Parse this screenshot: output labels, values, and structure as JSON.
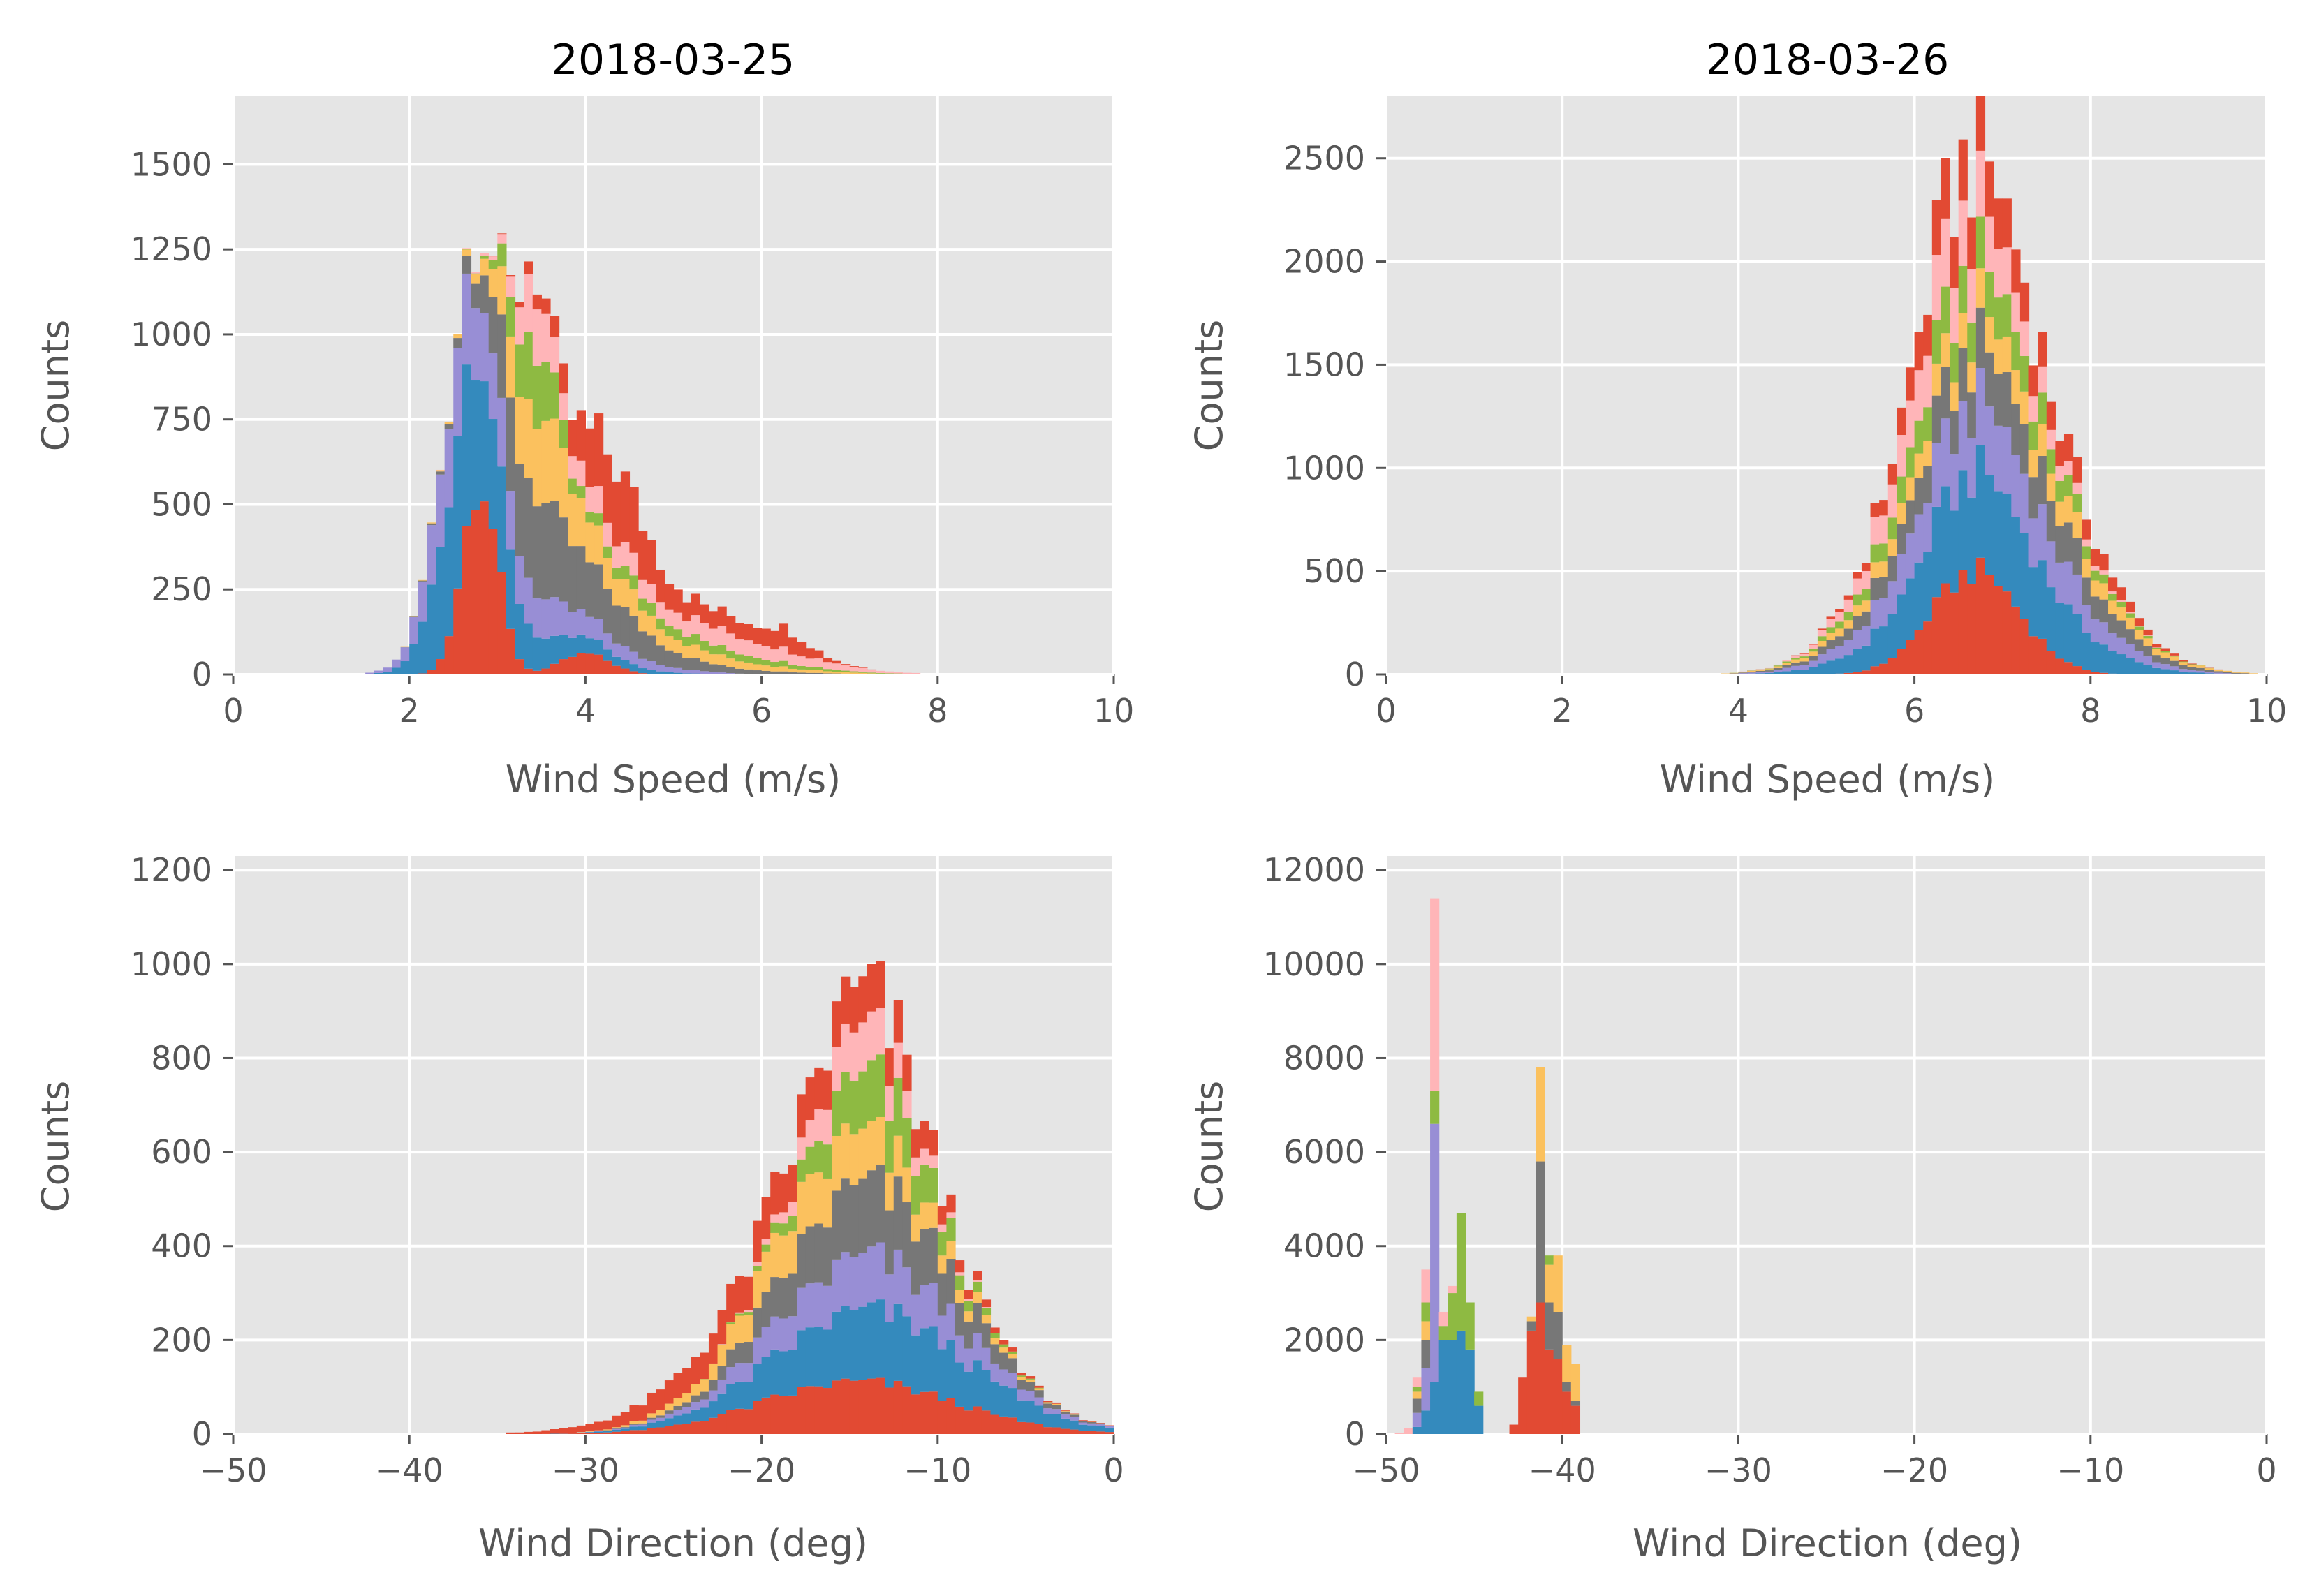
{
  "colors": [
    "#e24a33",
    "#348abd",
    "#988ed5",
    "#777777",
    "#fbc15e",
    "#8eba42",
    "#ffb5b8"
  ],
  "chart_data": [
    {
      "id": "top-left",
      "type": "histogram",
      "histtype": "stacked",
      "title": "2018-03-25",
      "xlabel": "Wind Speed (m/s)",
      "ylabel": "Counts",
      "xlim": [
        0,
        10
      ],
      "ylim": [
        0,
        1700
      ],
      "xticks": [
        0,
        2,
        4,
        6,
        8,
        10
      ],
      "xtick_labels": [
        "0",
        "2",
        "4",
        "6",
        "8",
        "10"
      ],
      "yticks": [
        0,
        250,
        500,
        750,
        1000,
        1250,
        1500
      ],
      "ytick_labels": [
        "0",
        "250",
        "500",
        "750",
        "1000",
        "1250",
        "1500"
      ],
      "bin_width": 0.1,
      "components": [
        {
          "type": "gauss",
          "mu": 2.8,
          "sigma": 0.2,
          "amp": 580
        },
        {
          "type": "gauss",
          "mu": 4.0,
          "sigma": 0.28,
          "amp": 60
        }
      ],
      "series": [
        {
          "color_index": 1,
          "segments": [
            [
              2.5,
              0.25,
              250
            ],
            [
              2.8,
              0.35,
              260
            ],
            [
              3.5,
              0.7,
              60
            ]
          ]
        },
        {
          "color_index": 2,
          "segments": [
            [
              2.5,
              0.28,
              180
            ],
            [
              3.0,
              0.5,
              120
            ],
            [
              3.8,
              0.8,
              50
            ]
          ]
        },
        {
          "color_index": 3,
          "segments": [
            [
              3.3,
              0.35,
              230
            ],
            [
              4.0,
              0.6,
              120
            ],
            [
              4.9,
              1.0,
              20
            ]
          ]
        },
        {
          "color_index": 4,
          "segments": [
            [
              3.4,
              0.3,
              180
            ],
            [
              3.9,
              0.6,
              80
            ],
            [
              5.0,
              1.0,
              30
            ]
          ]
        },
        {
          "color_index": 5,
          "segments": [
            [
              3.4,
              0.22,
              200
            ],
            [
              4.4,
              0.6,
              30
            ],
            [
              5.6,
              0.8,
              20
            ]
          ]
        },
        {
          "color_index": 6,
          "segments": [
            [
              3.4,
              0.15,
              150
            ],
            [
              4.0,
              0.55,
              60
            ],
            [
              5.6,
              0.9,
              50
            ]
          ]
        },
        {
          "color_index": 0,
          "segments": [
            [
              4.3,
              0.4,
              200
            ],
            [
              5.5,
              0.6,
              50
            ],
            [
              6.3,
              0.25,
              40
            ],
            [
              3.4,
              0.1,
              30
            ]
          ]
        }
      ]
    },
    {
      "id": "top-right",
      "type": "histogram",
      "histtype": "stacked",
      "title": "2018-03-26",
      "xlabel": "Wind Speed (m/s)",
      "ylabel": "Counts",
      "xlim": [
        0,
        10
      ],
      "ylim": [
        0,
        2800
      ],
      "xticks": [
        0,
        2,
        4,
        6,
        8,
        10
      ],
      "xtick_labels": [
        "0",
        "2",
        "4",
        "6",
        "8",
        "10"
      ],
      "yticks": [
        0,
        500,
        1000,
        1500,
        2000,
        2500
      ],
      "ytick_labels": [
        "0",
        "500",
        "1000",
        "1500",
        "2000",
        "2500"
      ],
      "bin_width": 0.1,
      "components": [
        {
          "type": "gauss",
          "mu": 6.7,
          "sigma": 0.5,
          "amp": 500
        }
      ],
      "series": [
        {
          "color_index": 1,
          "segments": [
            [
              6.8,
              0.85,
              480
            ]
          ]
        },
        {
          "color_index": 2,
          "segments": [
            [
              6.8,
              0.9,
              330
            ]
          ]
        },
        {
          "color_index": 3,
          "segments": [
            [
              6.9,
              0.95,
              260
            ]
          ]
        },
        {
          "color_index": 4,
          "segments": [
            [
              6.9,
              1.0,
              170
            ]
          ]
        },
        {
          "color_index": 5,
          "segments": [
            [
              6.7,
              0.8,
              220
            ]
          ]
        },
        {
          "color_index": 6,
          "segments": [
            [
              6.5,
              0.7,
              300
            ]
          ]
        },
        {
          "color_index": 0,
          "segments": [
            [
              6.6,
              0.6,
              280
            ],
            [
              7.9,
              0.5,
              80
            ]
          ]
        }
      ]
    },
    {
      "id": "bottom-left",
      "type": "histogram",
      "histtype": "stacked",
      "title": "",
      "xlabel": "Wind Direction (deg)",
      "ylabel": "Counts",
      "xlim": [
        -50,
        0
      ],
      "ylim": [
        0,
        1230
      ],
      "xticks": [
        -50,
        -40,
        -30,
        -20,
        -10,
        0
      ],
      "xtick_labels": [
        "−50",
        "−40",
        "−30",
        "−20",
        "−10",
        "0"
      ],
      "yticks": [
        0,
        200,
        400,
        600,
        800,
        1000,
        1200
      ],
      "ytick_labels": [
        "0",
        "200",
        "400",
        "600",
        "800",
        "1000",
        "1200"
      ],
      "bin_width": 0.5,
      "components": [
        {
          "type": "gauss",
          "mu": -14.5,
          "sigma": 5.5,
          "amp": 110
        }
      ],
      "series": [
        {
          "color_index": 1,
          "segments": [
            [
              -13.5,
              5.5,
              150
            ]
          ]
        },
        {
          "color_index": 2,
          "segments": [
            [
              -14.0,
              5.0,
              110
            ]
          ]
        },
        {
          "color_index": 3,
          "segments": [
            [
              -14.0,
              4.5,
              150
            ]
          ]
        },
        {
          "color_index": 4,
          "segments": [
            [
              -16.0,
              4.5,
              110
            ]
          ]
        },
        {
          "color_index": 5,
          "segments": [
            [
              -13.5,
              3.0,
              120
            ]
          ]
        },
        {
          "color_index": 6,
          "segments": [
            [
              -14.5,
              2.5,
              100
            ]
          ]
        },
        {
          "color_index": 0,
          "segments": [
            [
              -19.0,
              6.0,
              80
            ],
            [
              -13.0,
              2.5,
              40
            ]
          ]
        }
      ]
    },
    {
      "id": "bottom-right",
      "type": "histogram",
      "histtype": "stacked",
      "title": "",
      "xlabel": "Wind Direction (deg)",
      "ylabel": "Counts",
      "xlim": [
        -50,
        0
      ],
      "ylim": [
        0,
        12300
      ],
      "xticks": [
        -50,
        -40,
        -30,
        -20,
        -10,
        0
      ],
      "xtick_labels": [
        "−50",
        "−40",
        "−30",
        "−20",
        "−10",
        "0"
      ],
      "yticks": [
        0,
        2000,
        4000,
        6000,
        8000,
        10000,
        12000
      ],
      "ytick_labels": [
        "0",
        "2000",
        "4000",
        "6000",
        "8000",
        "10000",
        "12000"
      ],
      "bin_width": 0.5,
      "bars": [
        {
          "x0": -49.5,
          "x1": -49.0,
          "values": [
            0,
            0,
            0,
            0,
            0,
            0,
            30
          ]
        },
        {
          "x0": -49.0,
          "x1": -48.5,
          "values": [
            0,
            0,
            0,
            0,
            0,
            0,
            120
          ]
        },
        {
          "x0": -48.5,
          "x1": -48.0,
          "values": [
            0,
            150,
            300,
            300,
            150,
            100,
            200
          ]
        },
        {
          "x0": -48.0,
          "x1": -47.5,
          "values": [
            0,
            500,
            900,
            600,
            400,
            400,
            700
          ]
        },
        {
          "x0": -47.5,
          "x1": -47.0,
          "values": [
            0,
            1100,
            5500,
            0,
            0,
            700,
            4100
          ]
        },
        {
          "x0": -47.0,
          "x1": -46.5,
          "values": [
            0,
            2000,
            0,
            0,
            0,
            300,
            300
          ]
        },
        {
          "x0": -46.5,
          "x1": -46.0,
          "values": [
            0,
            2000,
            0,
            0,
            0,
            1000,
            150
          ]
        },
        {
          "x0": -46.0,
          "x1": -45.5,
          "values": [
            0,
            2200,
            0,
            0,
            0,
            2500,
            0
          ]
        },
        {
          "x0": -45.5,
          "x1": -45.0,
          "values": [
            0,
            1800,
            0,
            0,
            0,
            1000,
            0
          ]
        },
        {
          "x0": -45.0,
          "x1": -44.5,
          "values": [
            0,
            600,
            0,
            0,
            0,
            300,
            0
          ]
        },
        {
          "x0": -43.0,
          "x1": -42.5,
          "values": [
            200,
            0,
            0,
            0,
            0,
            0,
            0
          ]
        },
        {
          "x0": -42.5,
          "x1": -42.0,
          "values": [
            1200,
            0,
            0,
            0,
            0,
            0,
            0
          ]
        },
        {
          "x0": -42.0,
          "x1": -41.5,
          "values": [
            2200,
            0,
            0,
            200,
            100,
            0,
            0
          ]
        },
        {
          "x0": -41.5,
          "x1": -41.0,
          "values": [
            2800,
            0,
            0,
            3000,
            2000,
            0,
            0
          ]
        },
        {
          "x0": -41.0,
          "x1": -40.5,
          "values": [
            1800,
            0,
            0,
            1000,
            800,
            200,
            0
          ]
        },
        {
          "x0": -40.5,
          "x1": -40.0,
          "values": [
            1600,
            0,
            0,
            1000,
            1200,
            0,
            0
          ]
        },
        {
          "x0": -40.0,
          "x1": -39.5,
          "values": [
            900,
            0,
            0,
            200,
            800,
            0,
            0
          ]
        },
        {
          "x0": -39.5,
          "x1": -39.0,
          "values": [
            600,
            0,
            0,
            100,
            800,
            0,
            0
          ]
        }
      ]
    }
  ]
}
